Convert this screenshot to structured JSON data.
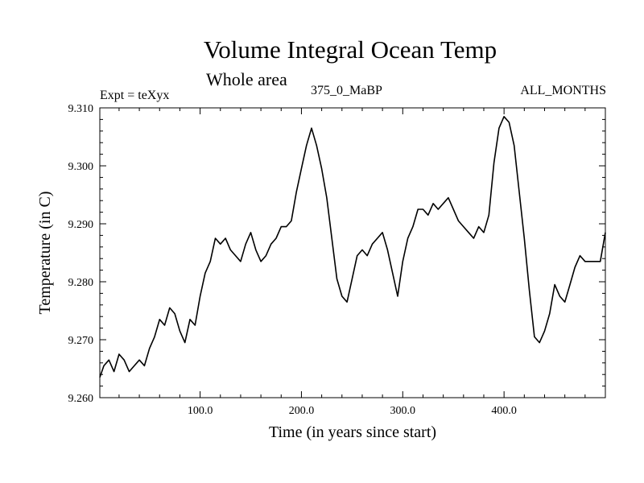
{
  "header": {
    "title": "Volume Integral Ocean Temp",
    "subtitle": "Whole area",
    "expt": "Expt = teXyx",
    "period": "375_0_MaBP",
    "months": "ALL_MONTHS"
  },
  "chart_data": {
    "type": "line",
    "title": "Volume Integral Ocean Temp",
    "subtitle": "Whole area",
    "xlabel": "Time (in years since start)",
    "ylabel": "Temperature (in C)",
    "xlim": [
      1,
      500
    ],
    "ylim": [
      9.26,
      9.31
    ],
    "xticks": [
      100,
      200,
      300,
      400
    ],
    "xtick_labels": [
      "100.0",
      "200.0",
      "300.0",
      "400.0"
    ],
    "yticks": [
      9.26,
      9.27,
      9.28,
      9.29,
      9.3,
      9.31
    ],
    "ytick_labels": [
      "9.260",
      "9.270",
      "9.280",
      "9.290",
      "9.300",
      "9.310"
    ],
    "grid": false,
    "series": [
      {
        "line_color": "#000000",
        "x": [
          1,
          5,
          10,
          15,
          20,
          25,
          30,
          35,
          40,
          45,
          50,
          55,
          60,
          65,
          70,
          75,
          80,
          85,
          90,
          95,
          100,
          105,
          110,
          115,
          120,
          125,
          130,
          135,
          140,
          145,
          150,
          155,
          160,
          165,
          170,
          175,
          180,
          185,
          190,
          195,
          200,
          205,
          210,
          215,
          220,
          225,
          230,
          235,
          240,
          245,
          250,
          255,
          260,
          265,
          270,
          275,
          280,
          285,
          290,
          295,
          300,
          305,
          310,
          315,
          320,
          325,
          330,
          335,
          340,
          345,
          350,
          355,
          360,
          365,
          370,
          375,
          380,
          385,
          390,
          395,
          400,
          405,
          410,
          415,
          420,
          425,
          430,
          435,
          440,
          445,
          450,
          455,
          460,
          465,
          470,
          475,
          480,
          485,
          490,
          495,
          500
        ],
        "y": [
          9.2635,
          9.2655,
          9.2665,
          9.2645,
          9.2675,
          9.2665,
          9.2645,
          9.2655,
          9.2665,
          9.2655,
          9.2685,
          9.2705,
          9.2735,
          9.2725,
          9.2755,
          9.2745,
          9.2715,
          9.2695,
          9.2735,
          9.2725,
          9.2775,
          9.2815,
          9.2835,
          9.2875,
          9.2865,
          9.2875,
          9.2855,
          9.2845,
          9.2835,
          9.2865,
          9.2885,
          9.2855,
          9.2835,
          9.2845,
          9.2865,
          9.2875,
          9.2895,
          9.2895,
          9.2905,
          9.2955,
          9.2995,
          9.3035,
          9.3065,
          9.3035,
          9.2995,
          9.2945,
          9.2875,
          9.2805,
          9.2775,
          9.2765,
          9.2805,
          9.2845,
          9.2855,
          9.2845,
          9.2865,
          9.2875,
          9.2885,
          9.2855,
          9.2815,
          9.2775,
          9.2835,
          9.2875,
          9.2895,
          9.2925,
          9.2925,
          9.2915,
          9.2935,
          9.2925,
          9.2935,
          9.2945,
          9.2925,
          9.2905,
          9.2895,
          9.2885,
          9.2875,
          9.2895,
          9.2885,
          9.2915,
          9.3005,
          9.3065,
          9.3085,
          9.3075,
          9.3035,
          9.2955,
          9.2875,
          9.2785,
          9.2705,
          9.2695,
          9.2715,
          9.2745,
          9.2795,
          9.2775,
          9.2765,
          9.2795,
          9.2825,
          9.2845,
          9.2835,
          9.2835,
          9.2835,
          9.2835,
          9.2885
        ]
      }
    ]
  }
}
